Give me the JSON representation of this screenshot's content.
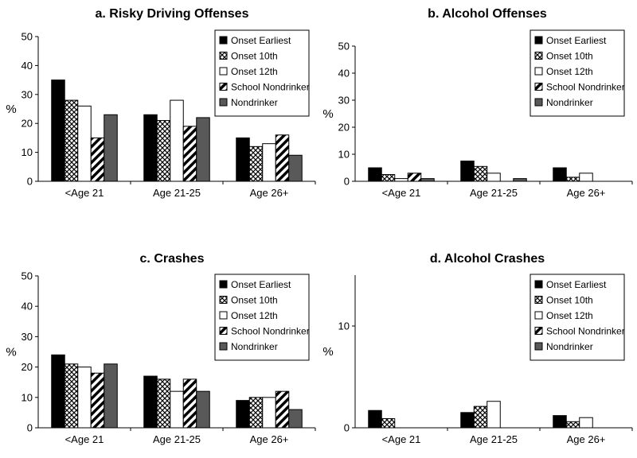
{
  "legend_entries": [
    "Onset Earliest",
    "Onset 10th",
    "Onset 12th",
    "School Nondrinker",
    "Nondrinker"
  ],
  "series_styles": [
    {
      "name": "Onset Earliest",
      "pattern": "solid",
      "color": "#000000"
    },
    {
      "name": "Onset 10th",
      "pattern": "crosshatch",
      "color": "#000000"
    },
    {
      "name": "Onset 12th",
      "pattern": "white",
      "color": "#ffffff"
    },
    {
      "name": "School Nondrinker",
      "pattern": "diagonal",
      "color": "#000000"
    },
    {
      "name": "Nondrinker",
      "pattern": "solid",
      "color": "#595959"
    }
  ],
  "chart_data": [
    {
      "type": "bar",
      "title": "a. Risky Driving Offenses",
      "ylabel": "%",
      "xlabel": "",
      "ylim": [
        0,
        50
      ],
      "yticks": [
        0,
        10,
        20,
        30,
        40,
        50
      ],
      "legend_position": "top-right",
      "categories": [
        "<Age 21",
        "Age 21-25",
        "Age 26+"
      ],
      "series": [
        {
          "name": "Onset Earliest",
          "values": [
            35,
            23,
            15
          ]
        },
        {
          "name": "Onset 10th",
          "values": [
            28,
            21,
            12
          ]
        },
        {
          "name": "Onset 12th",
          "values": [
            26,
            28,
            13
          ]
        },
        {
          "name": "School Nondrinker",
          "values": [
            15,
            19,
            16
          ]
        },
        {
          "name": "Nondrinker",
          "values": [
            23,
            22,
            9
          ]
        }
      ]
    },
    {
      "type": "bar",
      "title": "b. Alcohol Offenses",
      "ylabel": "%",
      "xlabel": "",
      "ylim": [
        0,
        50
      ],
      "yticks": [
        0,
        10,
        20,
        30,
        40,
        50
      ],
      "legend_position": "top-right",
      "categories": [
        "<Age 21",
        "Age 21-25",
        "Age 26+"
      ],
      "series": [
        {
          "name": "Onset Earliest",
          "values": [
            5,
            7.5,
            5
          ]
        },
        {
          "name": "Onset 10th",
          "values": [
            2.5,
            5.5,
            1.5
          ]
        },
        {
          "name": "Onset 12th",
          "values": [
            1,
            3,
            3
          ]
        },
        {
          "name": "School Nondrinker",
          "values": [
            3,
            0,
            0
          ]
        },
        {
          "name": "Nondrinker",
          "values": [
            1,
            1,
            0
          ]
        }
      ]
    },
    {
      "type": "bar",
      "title": "c. Crashes",
      "ylabel": "%",
      "xlabel": "",
      "ylim": [
        0,
        50
      ],
      "yticks": [
        0,
        10,
        20,
        30,
        40,
        50
      ],
      "legend_position": "top-right",
      "categories": [
        "<Age 21",
        "Age 21-25",
        "Age 26+"
      ],
      "series": [
        {
          "name": "Onset Earliest",
          "values": [
            24,
            17,
            9
          ]
        },
        {
          "name": "Onset 10th",
          "values": [
            21,
            16,
            10
          ]
        },
        {
          "name": "Onset 12th",
          "values": [
            20,
            12,
            10
          ]
        },
        {
          "name": "School Nondrinker",
          "values": [
            18,
            16,
            12
          ]
        },
        {
          "name": "Nondrinker",
          "values": [
            21,
            12,
            6
          ]
        }
      ]
    },
    {
      "type": "bar",
      "title": "d. Alcohol Crashes",
      "ylabel": "%",
      "xlabel": "",
      "ylim": [
        0,
        15
      ],
      "yticks": [
        0,
        10
      ],
      "legend_position": "top-right",
      "categories": [
        "<Age 21",
        "Age 21-25",
        "Age 26+"
      ],
      "series": [
        {
          "name": "Onset Earliest",
          "values": [
            1.7,
            1.5,
            1.2
          ]
        },
        {
          "name": "Onset 10th",
          "values": [
            0.9,
            2.1,
            0.6
          ]
        },
        {
          "name": "Onset 12th",
          "values": [
            0,
            2.6,
            1.0
          ]
        },
        {
          "name": "School Nondrinker",
          "values": [
            0,
            0,
            0
          ]
        },
        {
          "name": "Nondrinker",
          "values": [
            0,
            0,
            0
          ]
        }
      ]
    }
  ]
}
